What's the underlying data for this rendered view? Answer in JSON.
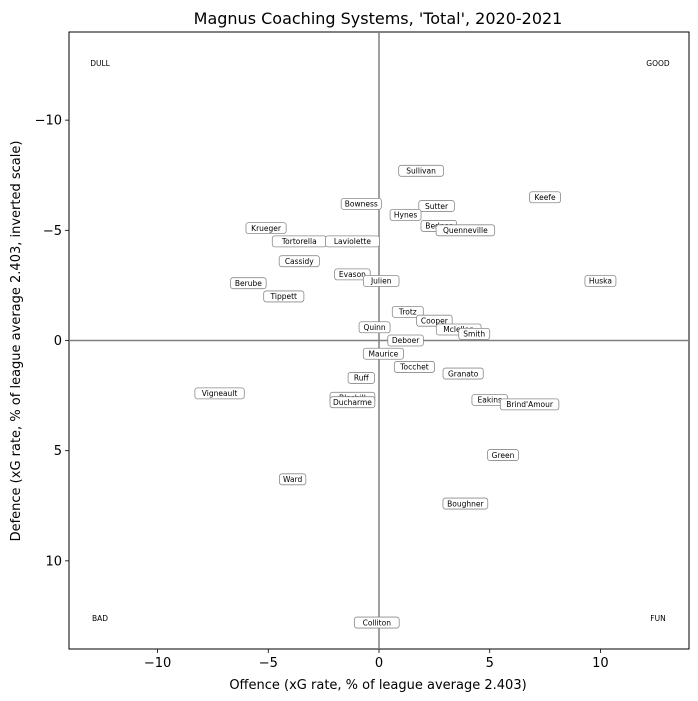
{
  "chart_data": {
    "type": "scatter",
    "title": "Magnus Coaching Systems, 'Total', 2020-2021",
    "xlabel": "Offence (xG rate, % of league average 2.403)",
    "ylabel": "Defence (xG rate, % of league average 2.403, inverted scale)",
    "xlim": [
      -14,
      14
    ],
    "ylim": [
      14,
      -14
    ],
    "y_inverted": true,
    "grid": false,
    "x_ticks": [
      -10,
      -5,
      0,
      5,
      10
    ],
    "y_ticks": [
      -10,
      -5,
      0,
      5,
      10
    ],
    "x_tick_labels": [
      "−10",
      "−5",
      "0",
      "5",
      "10"
    ],
    "y_tick_labels": [
      "−10",
      "−5",
      "0",
      "5",
      "10"
    ],
    "zero_line_color": "#808080",
    "box_border_color": "#8a8a8a",
    "corner_labels": [
      {
        "text": "DULL",
        "x": -12.6,
        "y": -12.6
      },
      {
        "text": "GOOD",
        "x": 12.6,
        "y": -12.6
      },
      {
        "text": "BAD",
        "x": -12.6,
        "y": 12.6
      },
      {
        "text": "FUN",
        "x": 12.6,
        "y": 12.6
      }
    ],
    "points": [
      {
        "name": "Sullivan",
        "x": 1.9,
        "y": -7.7
      },
      {
        "name": "Keefe",
        "x": 7.5,
        "y": -6.5
      },
      {
        "name": "Bowness",
        "x": -0.8,
        "y": -6.2
      },
      {
        "name": "Sutter",
        "x": 2.6,
        "y": -6.1
      },
      {
        "name": "Hynes",
        "x": 1.2,
        "y": -5.7
      },
      {
        "name": "Bednar",
        "x": 2.7,
        "y": -5.2
      },
      {
        "name": "Quenneville",
        "x": 3.9,
        "y": -5.0
      },
      {
        "name": "Krueger",
        "x": -5.1,
        "y": -5.1
      },
      {
        "name": "Tortorella",
        "x": -3.6,
        "y": -4.5
      },
      {
        "name": "Laviolette",
        "x": -1.2,
        "y": -4.5
      },
      {
        "name": "Cassidy",
        "x": -3.6,
        "y": -3.6
      },
      {
        "name": "Evason",
        "x": -1.2,
        "y": -3.0
      },
      {
        "name": "Julien",
        "x": 0.1,
        "y": -2.7
      },
      {
        "name": "Huska",
        "x": 10.0,
        "y": -2.7
      },
      {
        "name": "Berube",
        "x": -5.9,
        "y": -2.6
      },
      {
        "name": "Tippett",
        "x": -4.3,
        "y": -2.0
      },
      {
        "name": "Trotz",
        "x": 1.3,
        "y": -1.3
      },
      {
        "name": "Cooper",
        "x": 2.5,
        "y": -0.9
      },
      {
        "name": "Mclellan",
        "x": 3.6,
        "y": -0.5
      },
      {
        "name": "Smith",
        "x": 4.3,
        "y": -0.3
      },
      {
        "name": "Quinn",
        "x": -0.2,
        "y": -0.6
      },
      {
        "name": "Deboer",
        "x": 1.2,
        "y": 0.0
      },
      {
        "name": "Maurice",
        "x": 0.2,
        "y": 0.6
      },
      {
        "name": "Tocchet",
        "x": 1.6,
        "y": 1.2
      },
      {
        "name": "Granato",
        "x": 3.8,
        "y": 1.5
      },
      {
        "name": "Ruff",
        "x": -0.8,
        "y": 1.7
      },
      {
        "name": "Vigneault",
        "x": -7.2,
        "y": 2.4
      },
      {
        "name": "Blashill",
        "x": -1.2,
        "y": 2.6
      },
      {
        "name": "Ducharme",
        "x": -1.2,
        "y": 2.8
      },
      {
        "name": "Eakins",
        "x": 5.0,
        "y": 2.7
      },
      {
        "name": "Brind'Amour",
        "x": 6.8,
        "y": 2.9
      },
      {
        "name": "Green",
        "x": 5.6,
        "y": 5.2
      },
      {
        "name": "Ward",
        "x": -3.9,
        "y": 6.3
      },
      {
        "name": "Boughner",
        "x": 3.9,
        "y": 7.4
      },
      {
        "name": "Colliton",
        "x": -0.1,
        "y": 12.8
      }
    ]
  }
}
